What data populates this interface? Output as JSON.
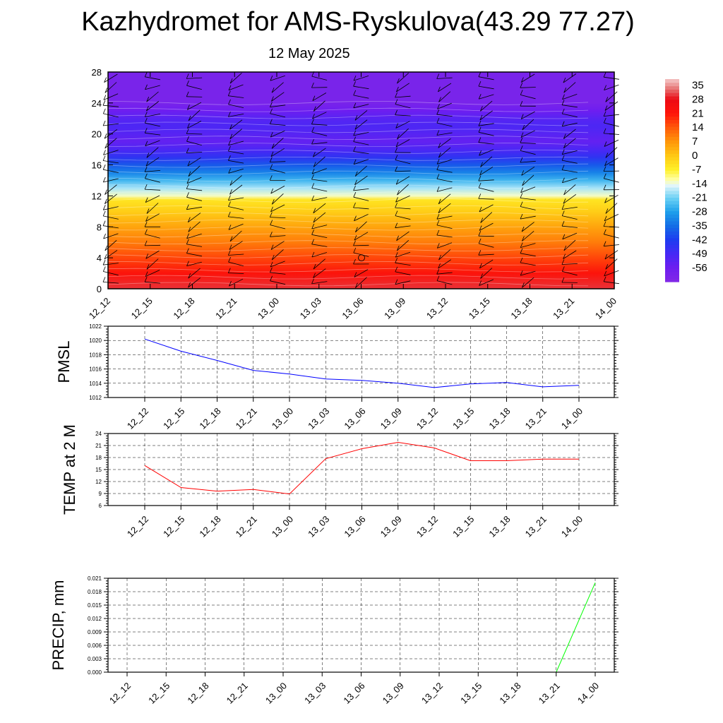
{
  "title": "Kazhydromet for AMS-Ryskulova(43.29 77.27)",
  "subtitle": "12 May 2025",
  "chart_data": [
    {
      "type": "heatmap",
      "name": "temperature cross-section with wind barbs",
      "categories": [
        "12_12",
        "12_15",
        "12_18",
        "12_21",
        "13_00",
        "13_03",
        "13_06",
        "13_09",
        "13_12",
        "13_15",
        "13_18",
        "13_21",
        "14_00"
      ],
      "ylim": [
        0,
        28
      ],
      "yticks": [
        0,
        4,
        8,
        12,
        16,
        20,
        24,
        28
      ],
      "colorbar": {
        "tick_labels": [
          35,
          28,
          21,
          14,
          7,
          0,
          -7,
          -14,
          -21,
          -28,
          -35,
          -42,
          -49,
          -56
        ],
        "min": -63,
        "max": 38
      },
      "profile": [
        {
          "level": 0,
          "value": 30
        },
        {
          "level": 2,
          "value": 22
        },
        {
          "level": 4,
          "value": 16
        },
        {
          "level": 6,
          "value": 10
        },
        {
          "level": 8,
          "value": 5
        },
        {
          "level": 10,
          "value": -1
        },
        {
          "level": 11.5,
          "value": -5
        },
        {
          "level": 12,
          "value": -13
        },
        {
          "level": 13,
          "value": -18
        },
        {
          "level": 14,
          "value": -25
        },
        {
          "level": 15,
          "value": -32
        },
        {
          "level": 16,
          "value": -38
        },
        {
          "level": 17,
          "value": -45
        },
        {
          "level": 18,
          "value": -50
        },
        {
          "level": 19,
          "value": -54
        },
        {
          "level": 20,
          "value": -52
        },
        {
          "level": 21,
          "value": -50
        },
        {
          "level": 22,
          "value": -52
        },
        {
          "level": 23,
          "value": -56
        },
        {
          "level": 24,
          "value": -60
        },
        {
          "level": 28,
          "value": -60
        }
      ],
      "grid": false
    },
    {
      "type": "line",
      "ylabel": "PMSL",
      "categories": [
        "12_12",
        "12_15",
        "12_18",
        "12_21",
        "13_00",
        "13_03",
        "13_06",
        "13_09",
        "13_12",
        "13_15",
        "13_18",
        "13_21",
        "14_00"
      ],
      "values": [
        1020.2,
        1018.5,
        1017.2,
        1015.8,
        1015.3,
        1014.6,
        1014.4,
        1014.0,
        1013.4,
        1013.9,
        1014.1,
        1013.5,
        1013.7
      ],
      "ylim": [
        1012,
        1022
      ],
      "yticks": [
        1012,
        1014,
        1016,
        1018,
        1020,
        1022
      ],
      "color": "#0000ff",
      "grid": true
    },
    {
      "type": "line",
      "ylabel": "TEMP at 2 M",
      "categories": [
        "12_12",
        "12_15",
        "12_18",
        "12_21",
        "13_00",
        "13_03",
        "13_06",
        "13_09",
        "13_12",
        "13_15",
        "13_18",
        "13_21",
        "14_00"
      ],
      "values": [
        16.0,
        10.5,
        9.6,
        10.0,
        8.9,
        17.7,
        20.2,
        21.8,
        20.4,
        17.2,
        17.2,
        17.6,
        17.6
      ],
      "ylim": [
        6,
        24
      ],
      "yticks": [
        6,
        9,
        12,
        15,
        18,
        21,
        24
      ],
      "color": "#ff0000",
      "grid": true
    },
    {
      "type": "bar",
      "ylabel": "PRECIP, mm",
      "categories": [
        "12_12",
        "12_15",
        "12_18",
        "12_21",
        "13_00",
        "13_03",
        "13_06",
        "13_09",
        "13_12",
        "13_15",
        "13_18",
        "13_21",
        "14_00"
      ],
      "values": [
        0,
        0,
        0,
        0,
        0,
        0,
        0,
        0,
        0,
        0,
        0,
        0,
        0.02
      ],
      "ylim": [
        0,
        0.021
      ],
      "yticks": [
        "0.000",
        "0.003",
        "0.006",
        "0.009",
        "0.012",
        "0.015",
        "0.018",
        "0.021"
      ],
      "color": "#00ff00",
      "grid": true
    }
  ]
}
